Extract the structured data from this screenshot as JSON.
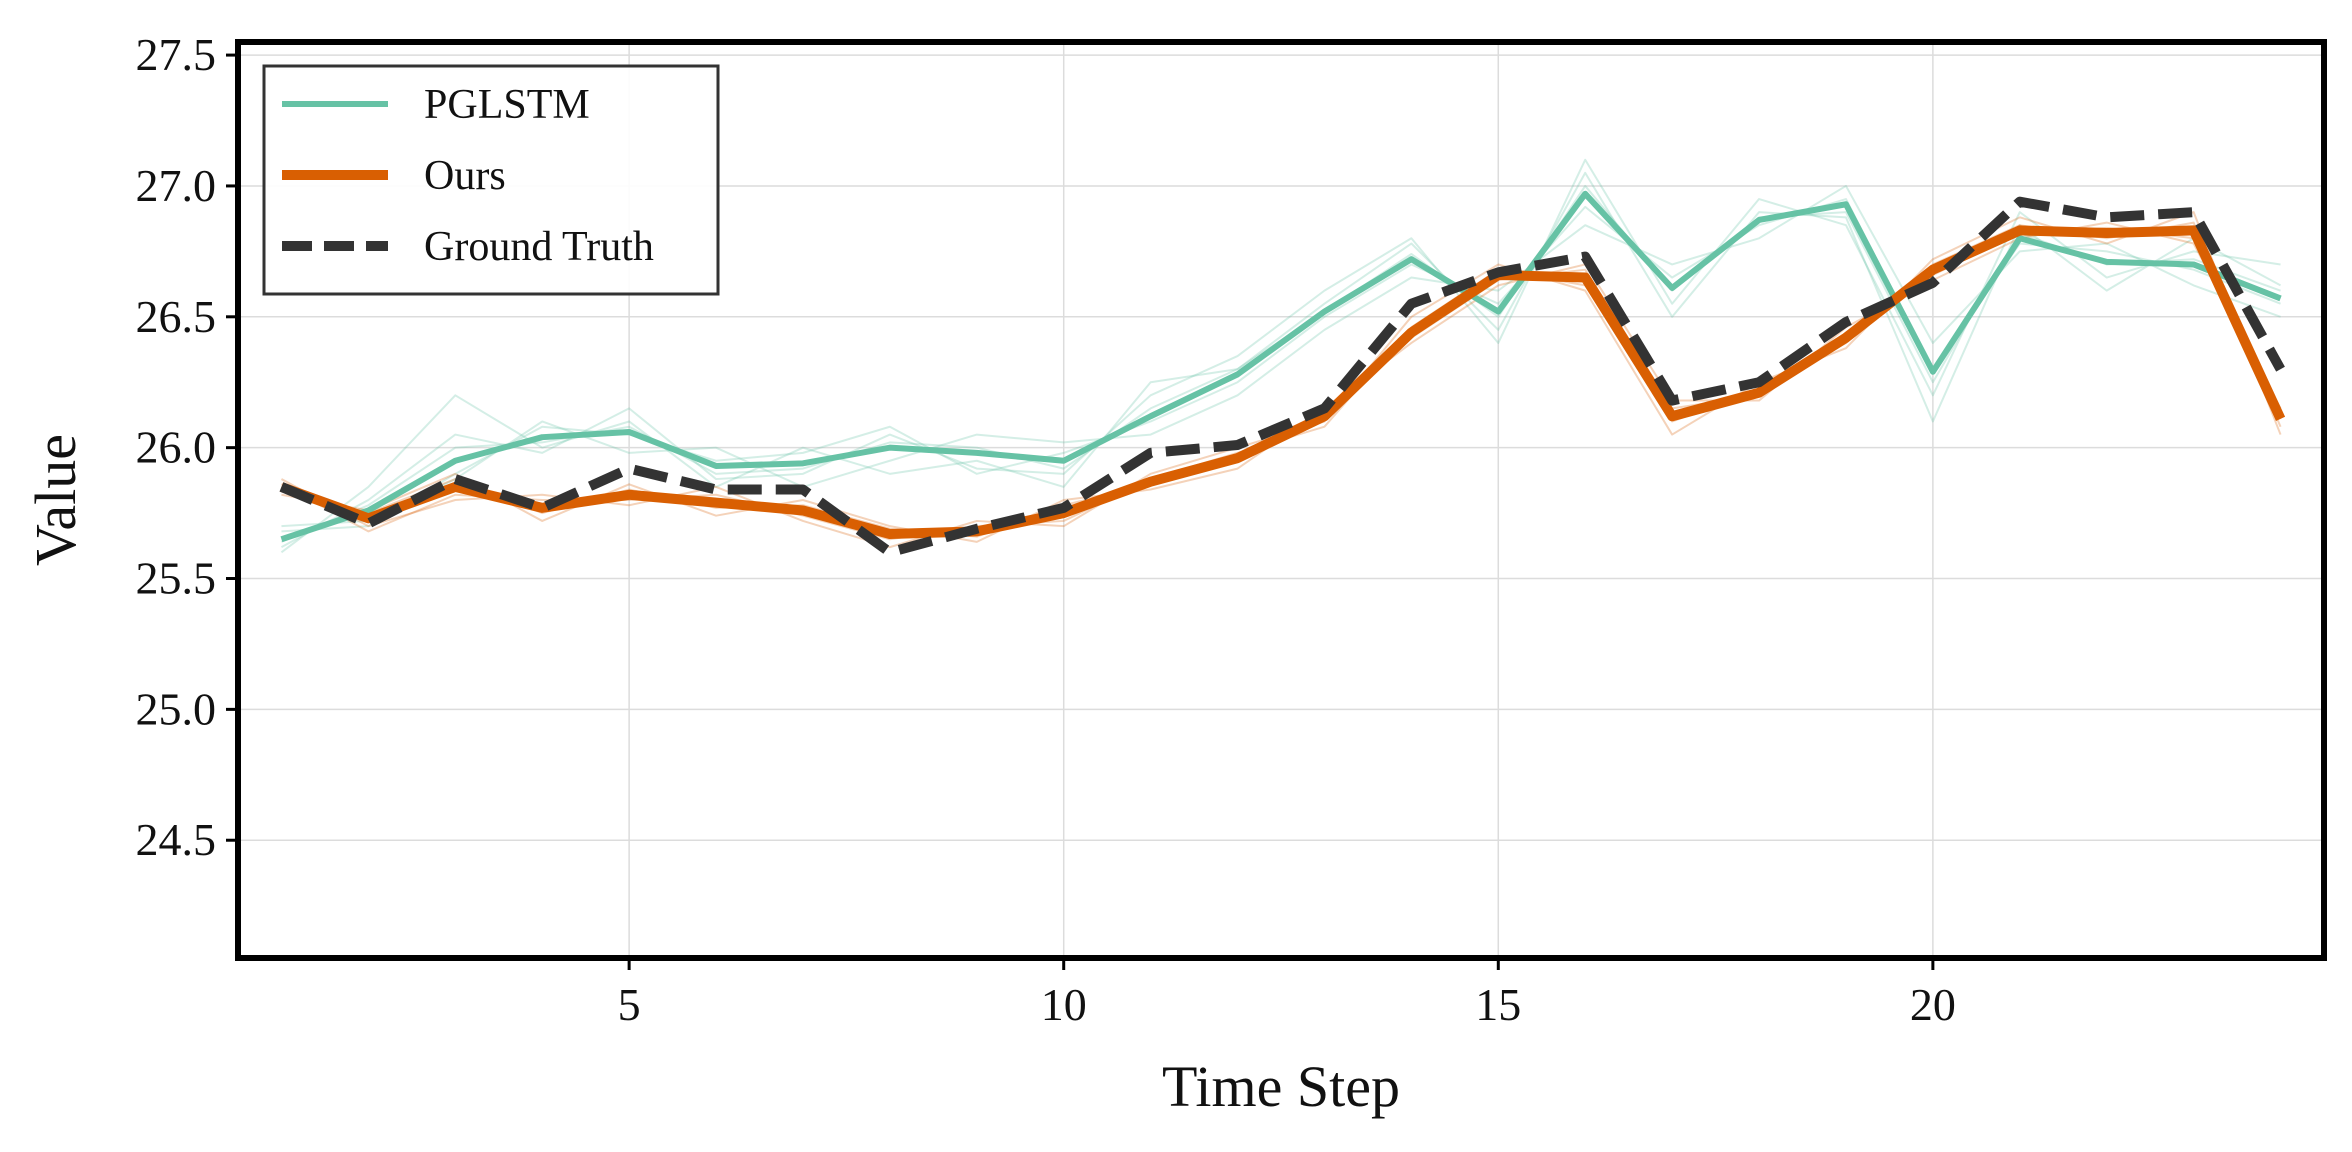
{
  "chart_data": {
    "type": "line",
    "xlabel": "Time Step",
    "ylabel": "Value",
    "xlim": [
      0.5,
      24.5
    ],
    "ylim": [
      24.05,
      27.55
    ],
    "xticks": [
      5,
      10,
      15,
      20
    ],
    "yticks": [
      24.5,
      25.0,
      25.5,
      26.0,
      26.5,
      27.0,
      27.5
    ],
    "ytick_labels": [
      "24.5",
      "25.0",
      "25.5",
      "26.0",
      "26.5",
      "27.0",
      "27.5"
    ],
    "grid": true,
    "legend_position": "top-left",
    "x": [
      1,
      2,
      3,
      4,
      5,
      6,
      7,
      8,
      9,
      10,
      11,
      12,
      13,
      14,
      15,
      16,
      17,
      18,
      19,
      20,
      21,
      22,
      23,
      24
    ],
    "series": [
      {
        "name": "PGLSTM",
        "color": "#66c2a5",
        "style": "solid",
        "values": [
          25.65,
          25.76,
          25.95,
          26.04,
          26.06,
          25.93,
          25.94,
          26.0,
          25.98,
          25.95,
          26.12,
          26.28,
          26.52,
          26.72,
          26.52,
          26.97,
          26.61,
          26.87,
          26.93,
          26.29,
          26.8,
          26.71,
          26.7,
          26.57
        ]
      },
      {
        "name": "Ours",
        "color": "#d95f02",
        "style": "solid",
        "values": [
          25.85,
          25.73,
          25.85,
          25.77,
          25.82,
          25.79,
          25.76,
          25.67,
          25.68,
          25.75,
          25.87,
          25.96,
          26.12,
          26.44,
          26.66,
          26.65,
          26.12,
          26.21,
          26.42,
          26.68,
          26.83,
          26.82,
          26.83,
          26.11
        ]
      },
      {
        "name": "Ground Truth",
        "color": "#333333",
        "style": "dashed",
        "values": [
          25.85,
          25.71,
          25.88,
          25.77,
          25.92,
          25.84,
          25.84,
          25.6,
          25.69,
          25.77,
          25.98,
          26.01,
          26.15,
          26.55,
          26.67,
          26.73,
          26.18,
          26.25,
          26.48,
          26.63,
          26.94,
          26.88,
          26.9,
          26.3
        ]
      }
    ],
    "ensemble_samples": {
      "PGLSTM": [
        [
          25.62,
          25.8,
          26.05,
          25.98,
          26.15,
          25.88,
          25.9,
          26.05,
          25.92,
          25.9,
          26.2,
          26.35,
          26.6,
          26.8,
          26.4,
          27.1,
          26.55,
          26.95,
          26.85,
          26.2,
          26.9,
          26.65,
          26.75,
          26.7
        ],
        [
          25.7,
          25.72,
          25.88,
          26.1,
          25.98,
          26.0,
          25.85,
          25.95,
          26.05,
          26.02,
          26.05,
          26.2,
          26.45,
          26.65,
          26.6,
          26.85,
          26.7,
          26.8,
          27.0,
          26.4,
          26.75,
          26.78,
          26.62,
          26.5
        ],
        [
          25.6,
          25.85,
          26.2,
          26.0,
          26.1,
          25.85,
          26.0,
          25.9,
          25.95,
          25.85,
          26.25,
          26.3,
          26.55,
          26.78,
          26.45,
          27.05,
          26.5,
          26.9,
          26.88,
          26.1,
          26.85,
          26.6,
          26.8,
          26.62
        ],
        [
          25.68,
          25.7,
          25.9,
          26.08,
          26.05,
          25.95,
          25.98,
          26.08,
          25.9,
          25.98,
          26.1,
          26.25,
          26.5,
          26.7,
          26.55,
          26.92,
          26.65,
          26.85,
          26.95,
          26.3,
          26.78,
          26.75,
          26.68,
          26.55
        ],
        [
          25.64,
          25.78,
          26.0,
          26.02,
          26.08,
          25.9,
          25.92,
          26.02,
          26.0,
          25.92,
          26.15,
          26.3,
          26.52,
          26.74,
          26.5,
          27.0,
          26.6,
          26.88,
          26.9,
          26.25,
          26.82,
          26.7,
          26.72,
          26.6
        ]
      ],
      "Ours": [
        [
          25.88,
          25.7,
          25.8,
          25.82,
          25.78,
          25.85,
          25.72,
          25.62,
          25.72,
          25.7,
          25.9,
          26.0,
          26.1,
          26.5,
          26.7,
          26.6,
          26.05,
          26.25,
          26.38,
          26.72,
          26.88,
          26.78,
          26.9,
          26.05
        ],
        [
          25.82,
          25.76,
          25.9,
          25.72,
          25.86,
          25.74,
          25.8,
          25.7,
          25.64,
          25.8,
          25.84,
          25.92,
          26.15,
          26.4,
          26.62,
          26.7,
          26.18,
          26.18,
          26.46,
          26.64,
          26.8,
          26.86,
          26.78,
          26.15
        ],
        [
          25.86,
          25.68,
          25.82,
          25.8,
          25.8,
          25.82,
          25.74,
          25.65,
          25.7,
          25.72,
          25.88,
          25.98,
          26.08,
          26.46,
          26.68,
          26.62,
          26.1,
          26.22,
          26.4,
          26.7,
          26.85,
          26.8,
          26.86,
          26.08
        ],
        [
          25.84,
          25.75,
          25.88,
          25.75,
          25.84,
          25.77,
          25.78,
          25.69,
          25.66,
          25.78,
          25.86,
          25.95,
          26.14,
          26.42,
          26.64,
          26.68,
          26.15,
          26.2,
          26.44,
          26.66,
          26.82,
          26.84,
          26.8,
          26.14
        ],
        [
          25.85,
          25.72,
          25.86,
          25.78,
          25.82,
          25.8,
          25.76,
          25.67,
          25.68,
          25.75,
          25.87,
          25.96,
          26.12,
          26.44,
          26.66,
          26.65,
          26.12,
          26.21,
          26.42,
          26.68,
          26.83,
          26.82,
          26.83,
          26.11
        ]
      ]
    }
  }
}
